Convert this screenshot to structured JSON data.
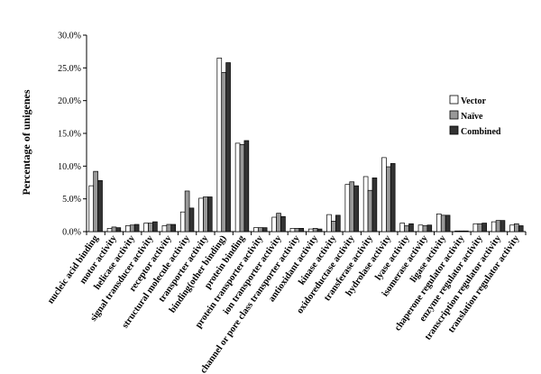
{
  "chart_data": {
    "type": "bar",
    "title": "",
    "xlabel": "",
    "ylabel": "Percentage of unigenes",
    "ylim": [
      0,
      30
    ],
    "yticks": [
      "0.0%",
      "5.0%",
      "10.0%",
      "15.0%",
      "20.0%",
      "25.0%",
      "30.0%"
    ],
    "grid": false,
    "legend_position": "right",
    "categories": [
      "nucleic acid binding",
      "motor activity",
      "helicase activity",
      "signal transducer activity",
      "receptor activity",
      "structural molecule activity",
      "transporter activity",
      "binding(other binding)",
      "protein binding",
      "protein transporter activity",
      "ion transporter activity",
      "channel or pore class transporter activity",
      "antioxidant activity",
      "kinase activity",
      "oxidoreductase activity",
      "transferase activity",
      "hydrolase activity",
      "lyase activity",
      "isomerase activity",
      "ligase activity",
      "chaperone regulator activity",
      "enzyme regulator activity",
      "transcription regulator activity",
      "translation regulator activity"
    ],
    "series": [
      {
        "name": "Vector",
        "color": "#ffffff",
        "values": [
          7.0,
          0.5,
          0.9,
          1.3,
          0.9,
          3.0,
          5.1,
          26.5,
          13.5,
          0.6,
          2.2,
          0.5,
          0.4,
          2.6,
          7.2,
          8.4,
          11.3,
          1.3,
          1.0,
          2.7,
          0.1,
          1.2,
          1.5,
          1.0
        ]
      },
      {
        "name": "Naïve",
        "color": "#999999",
        "values": [
          9.2,
          0.7,
          1.0,
          1.3,
          1.1,
          6.2,
          5.3,
          24.3,
          13.3,
          0.6,
          2.8,
          0.5,
          0.5,
          1.6,
          7.6,
          6.3,
          9.9,
          0.9,
          0.9,
          2.5,
          0.1,
          1.2,
          1.7,
          1.2
        ]
      },
      {
        "name": "Combined",
        "color": "#333333",
        "values": [
          7.8,
          0.6,
          1.1,
          1.5,
          1.1,
          3.6,
          5.3,
          25.8,
          13.9,
          0.6,
          2.3,
          0.5,
          0.4,
          2.5,
          7.0,
          8.2,
          10.4,
          1.2,
          1.0,
          2.5,
          0.1,
          1.3,
          1.7,
          0.9
        ]
      }
    ]
  }
}
